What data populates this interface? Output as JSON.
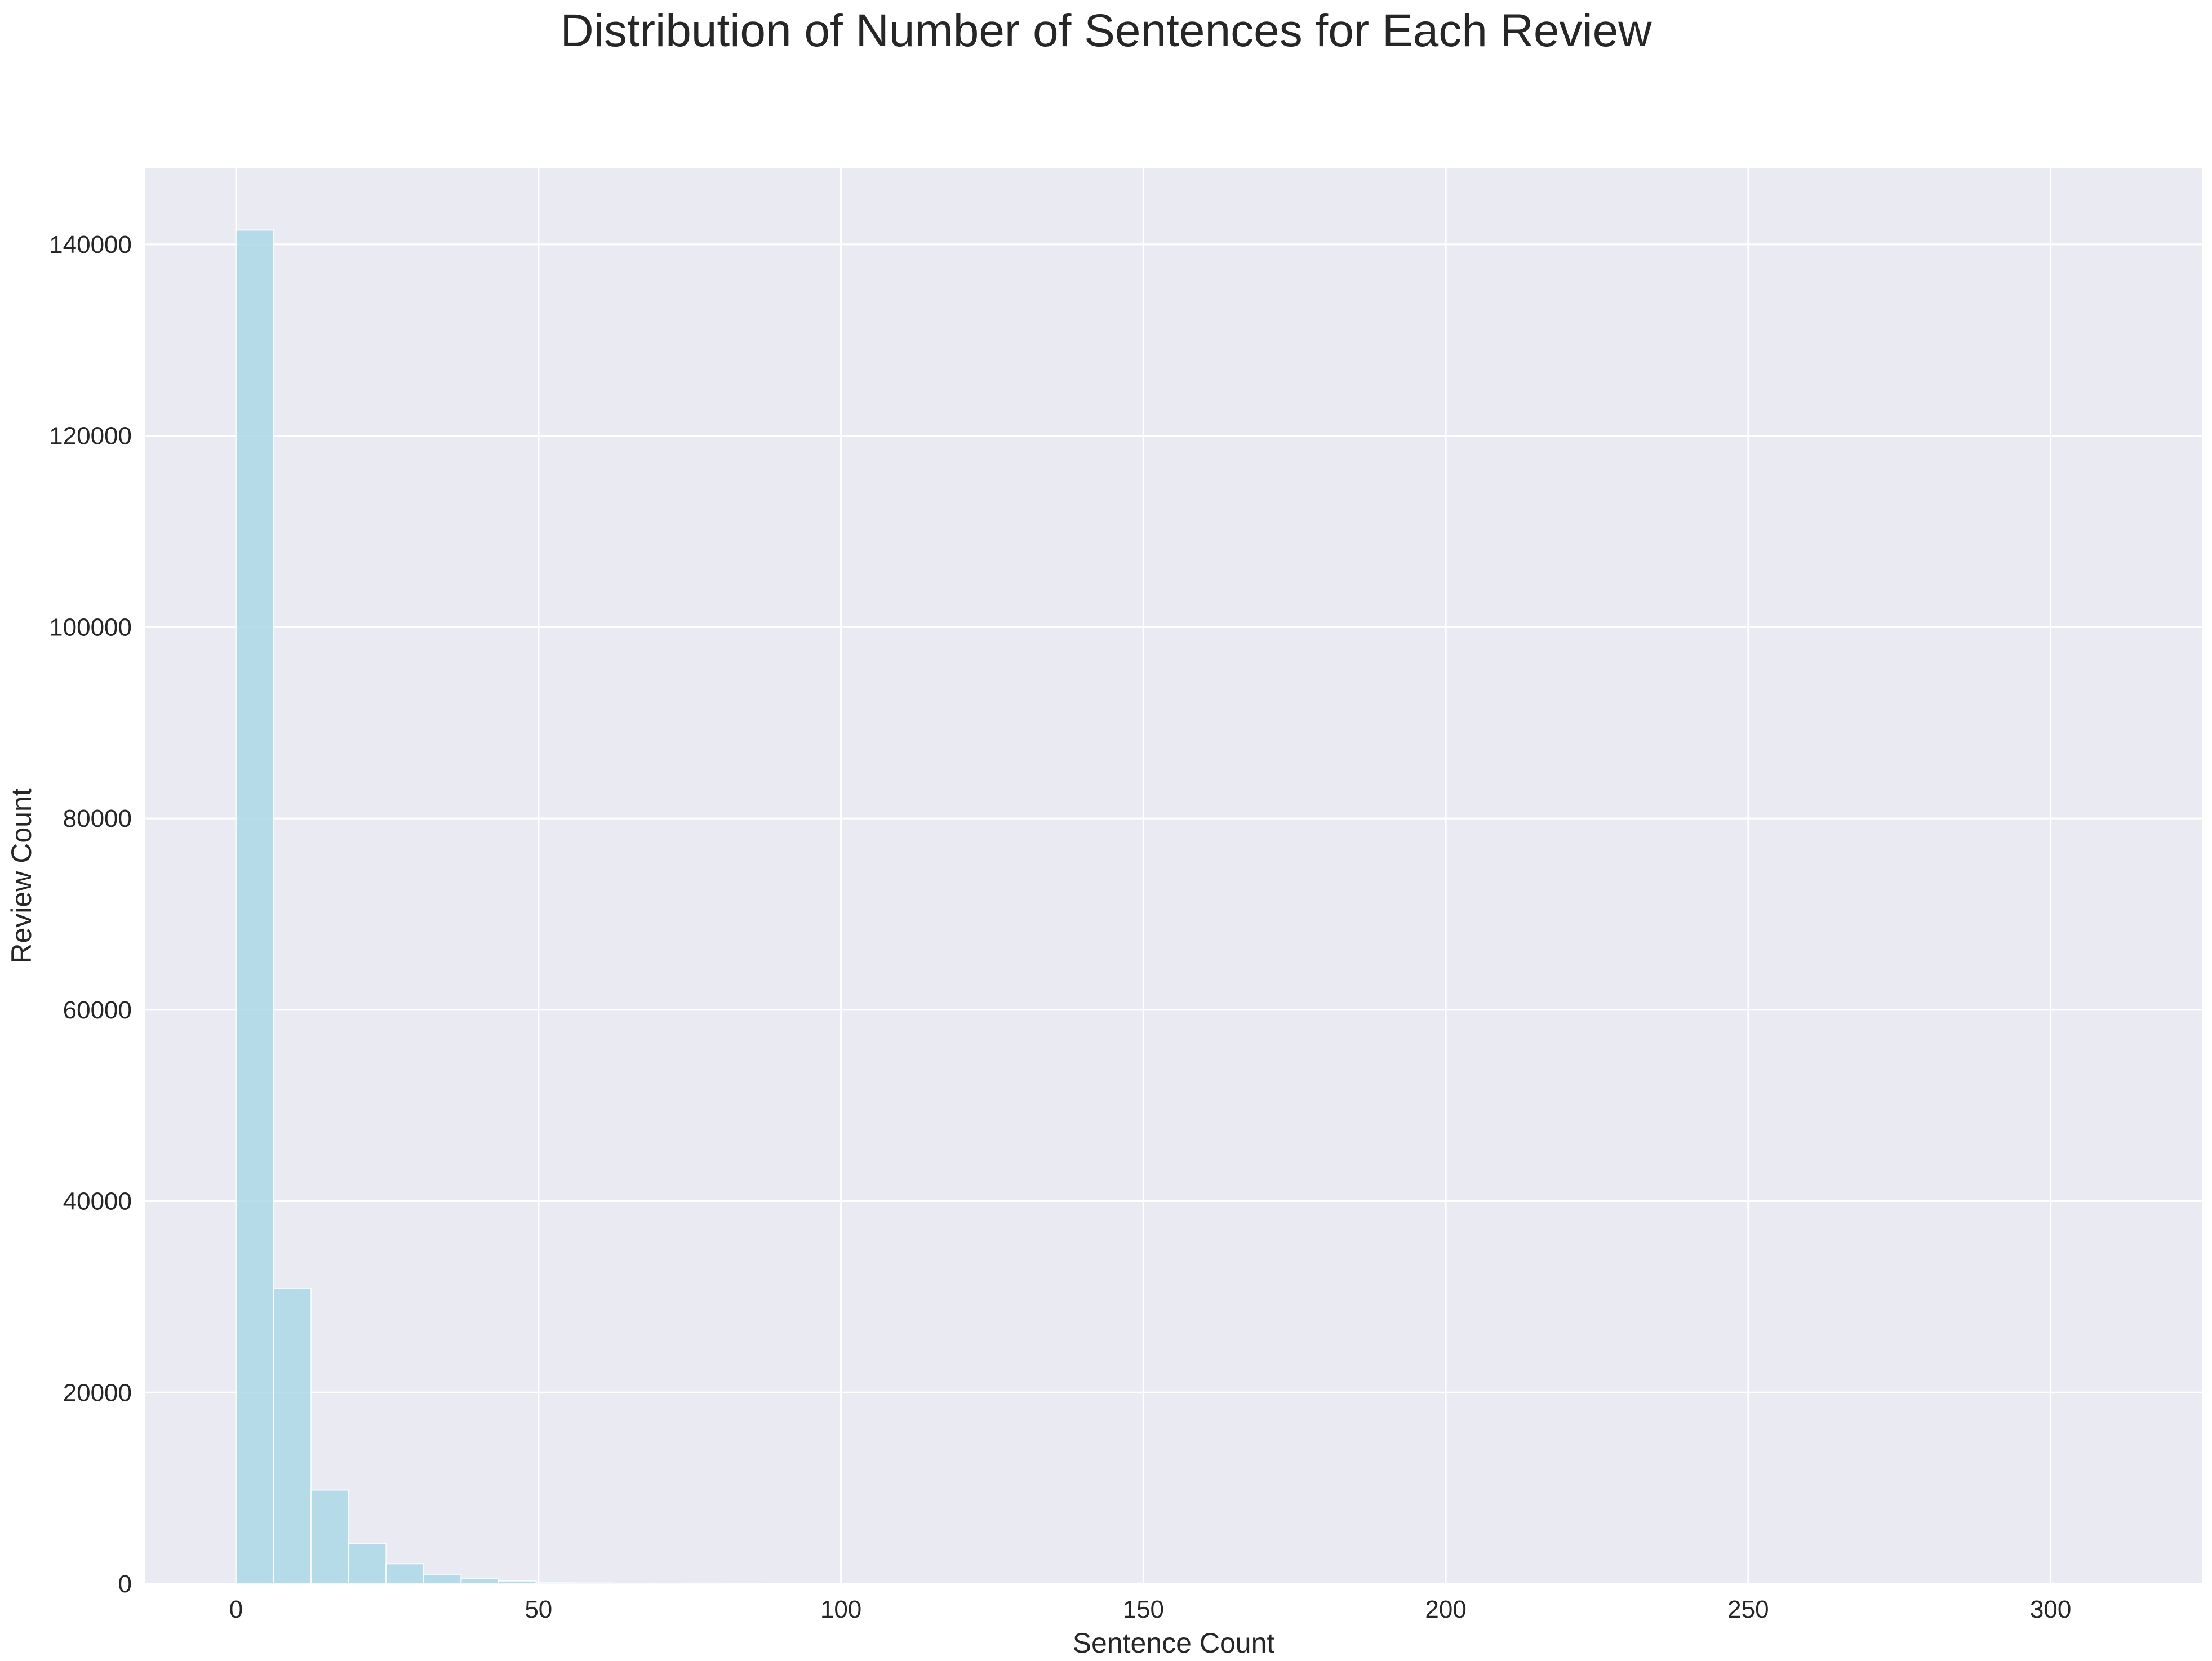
{
  "chart_data": {
    "type": "bar",
    "subtype": "histogram",
    "title": "Distribution of Number of Sentences for Each Review",
    "xlabel": "Sentence Count",
    "ylabel": "Review Count",
    "xlim": [
      -15,
      325
    ],
    "ylim": [
      0,
      148000
    ],
    "xticks": [
      0,
      50,
      100,
      150,
      200,
      250,
      300
    ],
    "yticks": [
      0,
      20000,
      40000,
      60000,
      80000,
      100000,
      120000,
      140000
    ],
    "bin_width": 6.2,
    "bins": [
      {
        "start": 0.0,
        "value": 141500
      },
      {
        "start": 6.2,
        "value": 30900
      },
      {
        "start": 12.4,
        "value": 9800
      },
      {
        "start": 18.6,
        "value": 4200
      },
      {
        "start": 24.8,
        "value": 2100
      },
      {
        "start": 31.0,
        "value": 1000
      },
      {
        "start": 37.2,
        "value": 550
      },
      {
        "start": 43.4,
        "value": 300
      },
      {
        "start": 49.6,
        "value": 160
      },
      {
        "start": 55.8,
        "value": 90
      },
      {
        "start": 62.0,
        "value": 50
      },
      {
        "start": 68.2,
        "value": 30
      },
      {
        "start": 74.4,
        "value": 20
      },
      {
        "start": 80.6,
        "value": 12
      }
    ],
    "grid": true,
    "colors": {
      "bar": "#add8e6",
      "background": "#eaeaf2",
      "grid": "#ffffff"
    }
  }
}
